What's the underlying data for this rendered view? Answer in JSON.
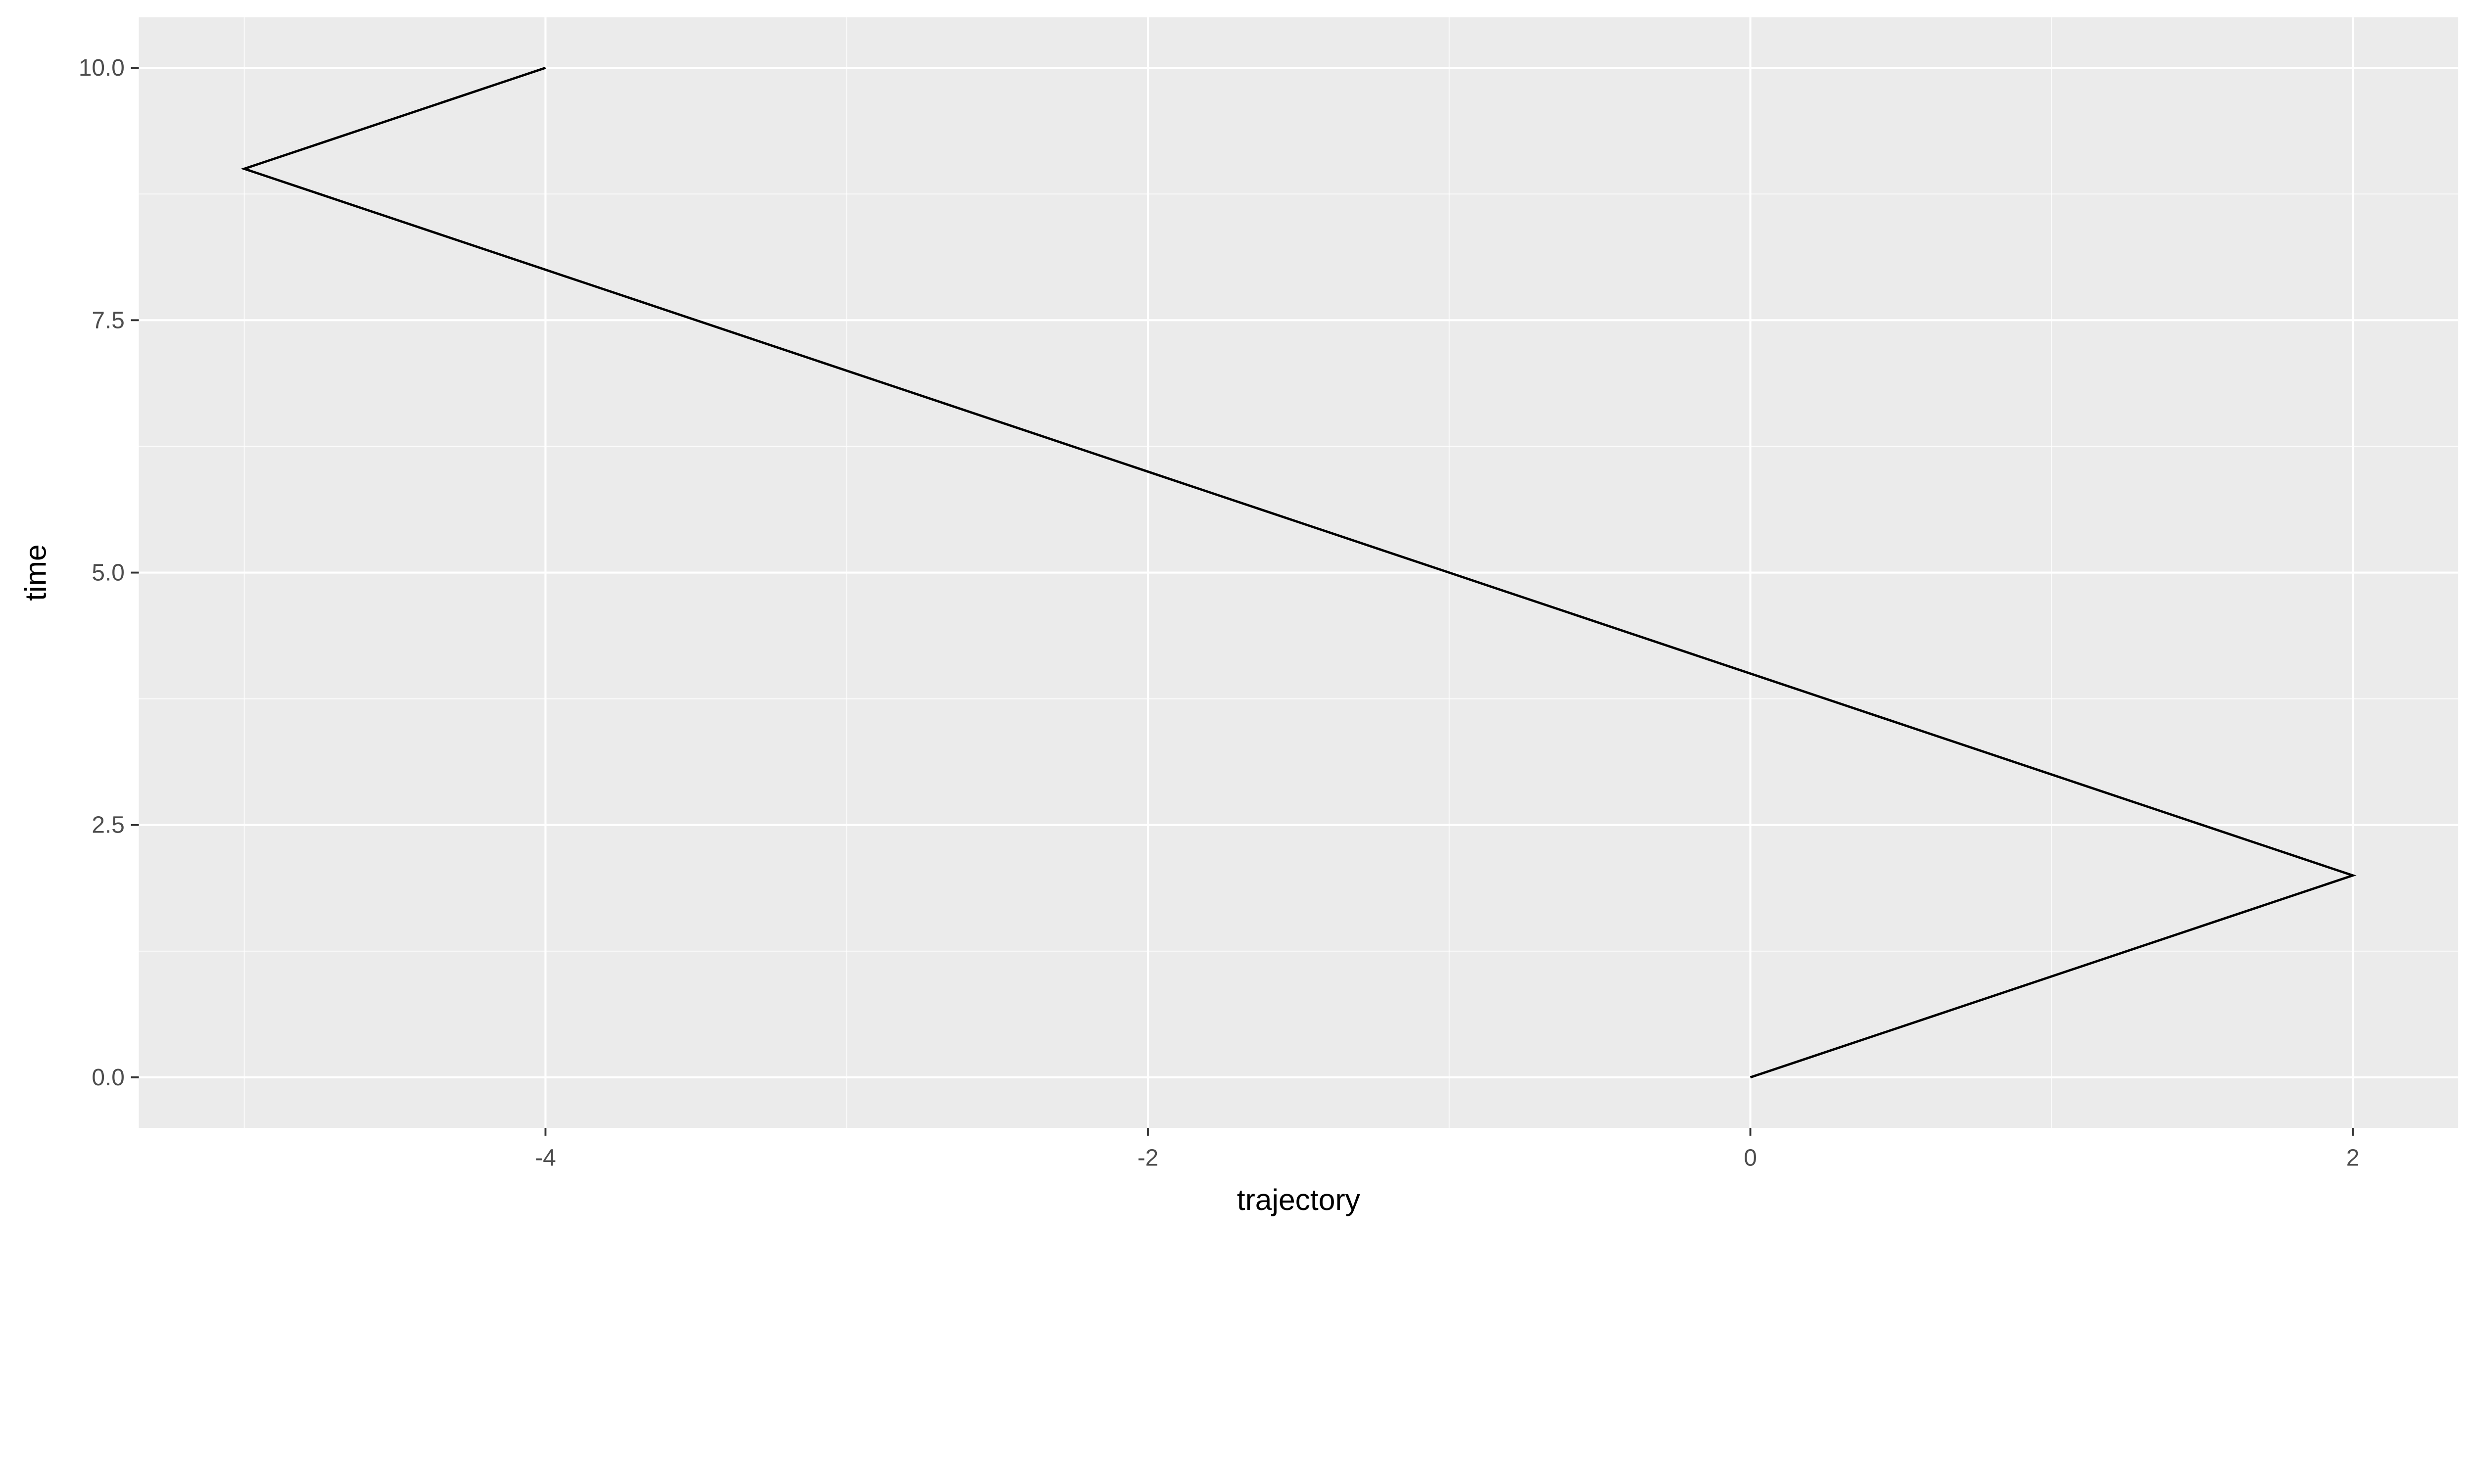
{
  "chart_data": {
    "type": "line",
    "title": "",
    "xlabel": "trajectory",
    "ylabel": "time",
    "x": [
      0,
      1,
      2,
      1,
      0,
      -1,
      -2,
      -3,
      -4,
      -5,
      -4
    ],
    "y": [
      0,
      1,
      2,
      3,
      4,
      5,
      6,
      7,
      8,
      9,
      10
    ],
    "connect_order": "data order (path)",
    "xlim": [
      -5.35,
      2.35
    ],
    "ylim": [
      -0.5,
      10.5
    ],
    "xticks": [
      -4,
      -2,
      0,
      2
    ],
    "xtick_labels": [
      "-4",
      "-2",
      "0",
      "2"
    ],
    "yticks": [
      0,
      2.5,
      5,
      7.5,
      10
    ],
    "ytick_labels": [
      "0.0",
      "2.5",
      "5.0",
      "7.5",
      "10.0"
    ],
    "grid": true,
    "colors": {
      "panel": "#EBEBEB",
      "grid": "#FFFFFF",
      "line": "#000000"
    }
  }
}
